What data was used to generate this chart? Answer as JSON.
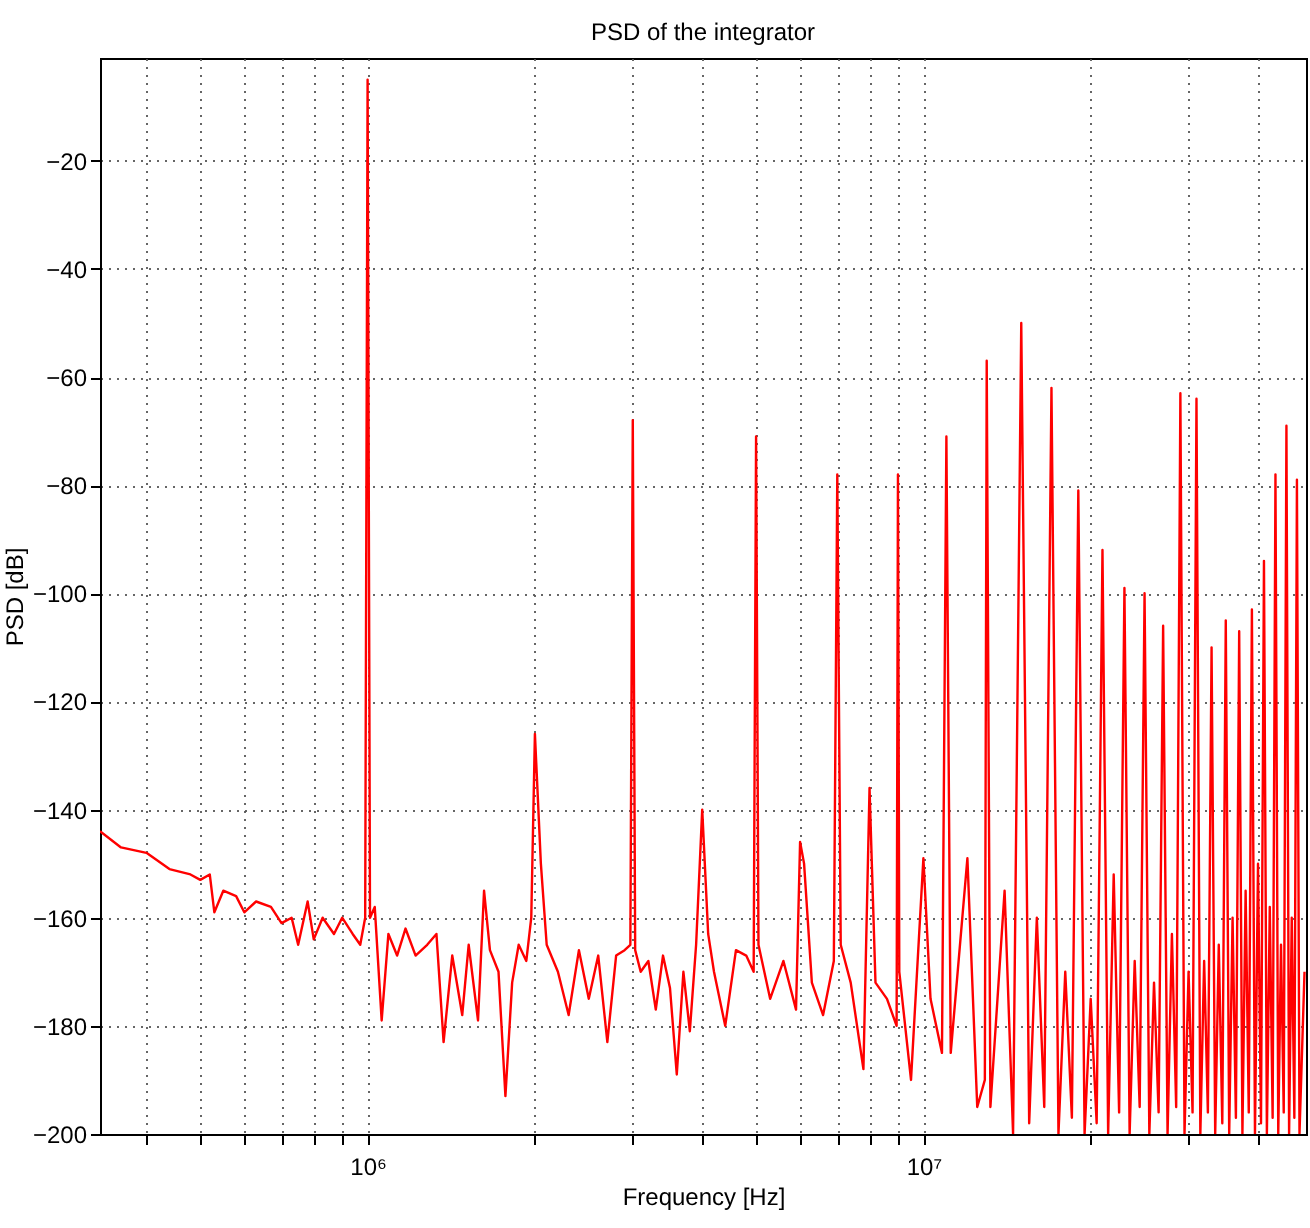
{
  "chart_data": {
    "type": "line",
    "title": "PSD of the integrator",
    "xlabel": "Frequency [Hz]",
    "ylabel": "PSD [dB]",
    "log": "x",
    "grid": true,
    "legend": false,
    "marker": "none",
    "line_style": "solid",
    "xlim": [
      330000,
      48800000
    ],
    "xticks": [
      {
        "value": 400000,
        "label": null
      },
      {
        "value": 500000,
        "label": null
      },
      {
        "value": 600000,
        "label": null
      },
      {
        "value": 700000,
        "label": null
      },
      {
        "value": 800000,
        "label": null
      },
      {
        "value": 900000,
        "label": null
      },
      {
        "value": 1000000,
        "label": "10⁶"
      },
      {
        "value": 2000000,
        "label": null
      },
      {
        "value": 3000000,
        "label": null
      },
      {
        "value": 4000000,
        "label": null
      },
      {
        "value": 5000000,
        "label": null
      },
      {
        "value": 6000000,
        "label": null
      },
      {
        "value": 7000000,
        "label": null
      },
      {
        "value": 8000000,
        "label": null
      },
      {
        "value": 9000000,
        "label": null
      },
      {
        "value": 10000000,
        "label": "10⁷"
      },
      {
        "value": 20000000,
        "label": null
      },
      {
        "value": 30000000,
        "label": null
      },
      {
        "value": 40000000,
        "label": null
      }
    ],
    "ylim": [
      -200,
      -1
    ],
    "yticks": [
      -200,
      -180,
      -160,
      -140,
      -120,
      -100,
      -80,
      -60,
      -40,
      -20
    ],
    "x": [
      330000,
      360000,
      400000,
      440000,
      480000,
      500000,
      520000,
      530000,
      550000,
      580000,
      600000,
      630000,
      670000,
      700000,
      730000,
      750000,
      780000,
      800000,
      830000,
      870000,
      900000,
      940000,
      970000,
      990000,
      1000000,
      1010000,
      1030000,
      1060000,
      1090000,
      1130000,
      1170000,
      1220000,
      1280000,
      1330000,
      1370000,
      1420000,
      1480000,
      1520000,
      1580000,
      1620000,
      1660000,
      1720000,
      1770000,
      1820000,
      1870000,
      1930000,
      1970000,
      2000000,
      2050000,
      2100000,
      2200000,
      2300000,
      2400000,
      2500000,
      2600000,
      2700000,
      2800000,
      2900000,
      2970000,
      3000000,
      3030000,
      3100000,
      3200000,
      3300000,
      3400000,
      3500000,
      3600000,
      3700000,
      3800000,
      3900000,
      4000000,
      4100000,
      4200000,
      4400000,
      4600000,
      4800000,
      4950000,
      5000000,
      5050000,
      5300000,
      5600000,
      5900000,
      6000000,
      6100000,
      6300000,
      6600000,
      6900000,
      7000000,
      7100000,
      7400000,
      7800000,
      8000000,
      8200000,
      8600000,
      8950000,
      9000000,
      9050000,
      9500000,
      10000000,
      10300000,
      10800000,
      11000000,
      11200000,
      12000000,
      12500000,
      12900000,
      13000000,
      13200000,
      14000000,
      14500000,
      15000000,
      15500000,
      16000000,
      16500000,
      17000000,
      17500000,
      18000000,
      18500000,
      19000000,
      19500000,
      20000000,
      20500000,
      21000000,
      21500000,
      22000000,
      22500000,
      23000000,
      23500000,
      24000000,
      24500000,
      25000000,
      25500000,
      26000000,
      26500000,
      27000000,
      27500000,
      28000000,
      28500000,
      29000000,
      29500000,
      30000000,
      30500000,
      31000000,
      31500000,
      32000000,
      32500000,
      33000000,
      33500000,
      34000000,
      34500000,
      35000000,
      35500000,
      36000000,
      36500000,
      37000000,
      37500000,
      38000000,
      38500000,
      39000000,
      39500000,
      40000000,
      40500000,
      41000000,
      41500000,
      42000000,
      42500000,
      43000000,
      43500000,
      44000000,
      44500000,
      45000000,
      45500000,
      46000000,
      46500000,
      47000000,
      47500000,
      48500000
    ],
    "series": [
      {
        "color": "#ff0000",
        "values": [
          -144,
          -147,
          -148,
          -151,
          -152,
          -153,
          -152,
          -159,
          -155,
          -156,
          -159,
          -157,
          -158,
          -161,
          -160,
          -165,
          -157,
          -164,
          -160,
          -163,
          -160,
          -163,
          -165,
          -160,
          -5,
          -160,
          -158,
          -179,
          -163,
          -167,
          -162,
          -167,
          -165,
          -163,
          -183,
          -167,
          -178,
          -165,
          -179,
          -155,
          -166,
          -170,
          -193,
          -172,
          -165,
          -168,
          -160,
          -126,
          -150,
          -165,
          -170,
          -178,
          -166,
          -175,
          -167,
          -183,
          -167,
          -166,
          -165,
          -68,
          -166,
          -170,
          -168,
          -177,
          -167,
          -173,
          -189,
          -170,
          -181,
          -165,
          -140,
          -163,
          -170,
          -180,
          -166,
          -167,
          -170,
          -71,
          -165,
          -175,
          -168,
          -177,
          -146,
          -150,
          -172,
          -178,
          -168,
          -78,
          -165,
          -172,
          -188,
          -136,
          -172,
          -175,
          -180,
          -78,
          -170,
          -190,
          -149,
          -175,
          -185,
          -71,
          -185,
          -149,
          -195,
          -190,
          -57,
          -195,
          -155,
          -200,
          -50,
          -198,
          -160,
          -195,
          -62,
          -200,
          -170,
          -197,
          -81,
          -200,
          -175,
          -198,
          -92,
          -200,
          -152,
          -196,
          -99,
          -200,
          -168,
          -195,
          -100,
          -200,
          -172,
          -196,
          -106,
          -200,
          -163,
          -195,
          -63,
          -200,
          -170,
          -196,
          -64,
          -200,
          -168,
          -196,
          -110,
          -200,
          -165,
          -198,
          -105,
          -200,
          -160,
          -197,
          -107,
          -200,
          -155,
          -196,
          -103,
          -200,
          -150,
          -198,
          -94,
          -200,
          -158,
          -197,
          -78,
          -200,
          -165,
          -196,
          -69,
          -200,
          -160,
          -197,
          -79,
          -200,
          -170
        ]
      }
    ]
  }
}
